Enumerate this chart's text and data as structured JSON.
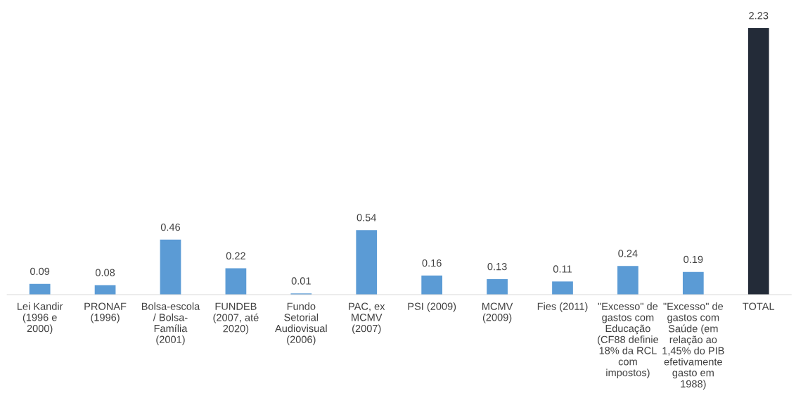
{
  "chart_data": {
    "type": "bar",
    "categories": [
      "Lei Kandir\n(1996 e\n2000)",
      "PRONAF\n(1996)",
      "Bolsa-escola\n/ Bolsa-\nFamília\n(2001)",
      "FUNDEB\n(2007, até\n2020)",
      "Fundo\nSetorial\nAudiovisual\n(2006)",
      "PAC, ex\nMCMV\n(2007)",
      "PSI (2009)",
      "MCMV\n(2009)",
      "Fies (2011)",
      "\"Excesso\" de\ngastos com\nEducação\n(CF88 definie\n18% da RCL\ncom\nimpostos)",
      "\"Excesso\" de\ngastos com\nSaúde (em\nrelação ao\n1,45% do PIB\nefetivamente\ngasto em\n1988)",
      "TOTAL"
    ],
    "values": [
      0.09,
      0.08,
      0.46,
      0.22,
      0.01,
      0.54,
      0.16,
      0.13,
      0.11,
      0.24,
      0.19,
      2.23
    ],
    "colors": [
      "#5b9bd5",
      "#5b9bd5",
      "#5b9bd5",
      "#5b9bd5",
      "#5b9bd5",
      "#5b9bd5",
      "#5b9bd5",
      "#5b9bd5",
      "#5b9bd5",
      "#5b9bd5",
      "#5b9bd5",
      "#232b38"
    ],
    "data_labels": true
  }
}
